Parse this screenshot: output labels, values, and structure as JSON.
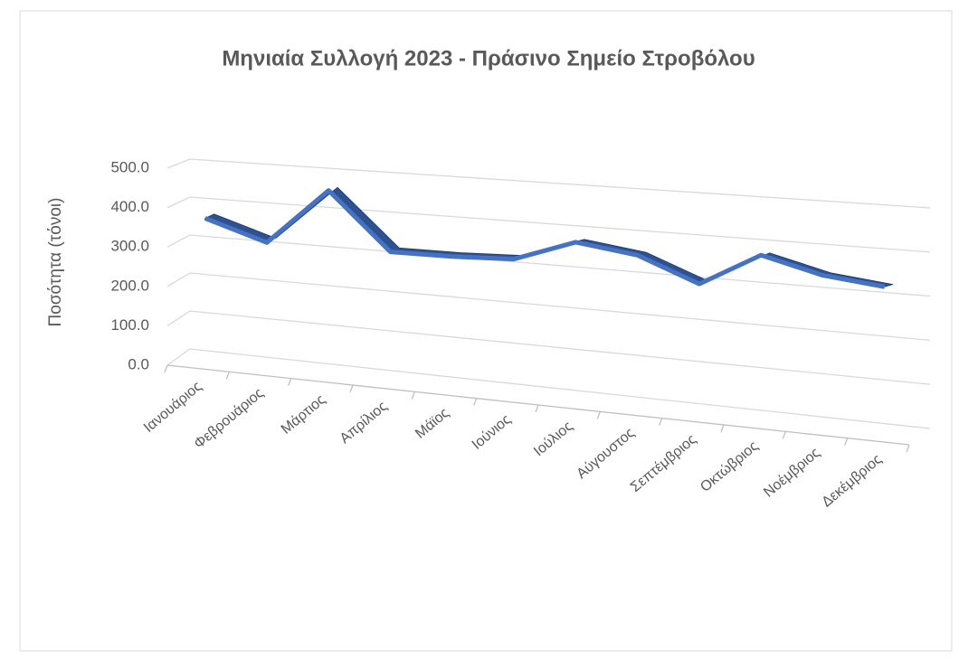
{
  "chart_data": {
    "type": "line",
    "title": "Μηνιαία Συλλογή 2023 - Πράσινο Σημείο Στροβόλου",
    "y_label": "Ποσότητα (τόνοι)",
    "categories": [
      "Ιανουάριος",
      "Φεβρουάριος",
      "Μάρτιος",
      "Απρίλιος",
      "Μάϊος",
      "Ιούνιος",
      "Ιούλιος",
      "Αύγουστος",
      "Σεπτέμβριος",
      "Οκτώβριος",
      "Νοέμβριος",
      "Δεκέμβριος"
    ],
    "series": [
      {
        "name": "Ποσότητα (τόνοι)",
        "color": "#4472c4",
        "values": [
          370,
          320,
          460,
          320,
          320,
          325,
          375,
          355,
          300,
          375,
          340,
          325
        ]
      }
    ],
    "ylim": [
      0,
      500
    ],
    "yticks": [
      {
        "value": 0,
        "label": "0.0"
      },
      {
        "value": 100,
        "label": "100.0"
      },
      {
        "value": 200,
        "label": "200.0"
      },
      {
        "value": 300,
        "label": "300.0"
      },
      {
        "value": 400,
        "label": "400.0"
      },
      {
        "value": 500,
        "label": "500.0"
      }
    ],
    "grid": true
  }
}
